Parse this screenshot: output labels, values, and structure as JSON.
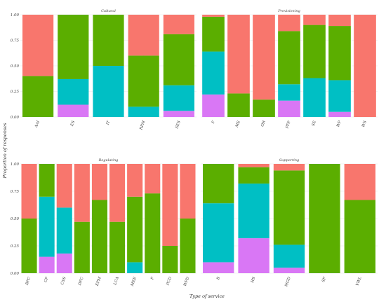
{
  "colors": {
    "red": "#F8766D",
    "green": "#5BAE00",
    "cyan": "#00BFC4",
    "purple": "#D977F5",
    "panel_bg": "#FFFFFF",
    "grid": "#E8E8E8"
  },
  "stack_order_bottom_to_top": [
    "purple",
    "cyan",
    "green",
    "red"
  ],
  "chart_data": {
    "type": "bar",
    "stacked": true,
    "xlabel": "Type of service",
    "ylabel": "Proportion of responses",
    "ylim": [
      0,
      1
    ],
    "yticks": [
      "0.00",
      "0.25",
      "0.50",
      "0.75",
      "1.00"
    ],
    "grid": true,
    "legend": "none",
    "panels": [
      {
        "title": "Cultural",
        "categories": [
          "AAI",
          "ES",
          "IT",
          "RPM",
          "SES"
        ],
        "series": [
          {
            "color": "purple",
            "values": [
              0.0,
              0.12,
              0.0,
              0.0,
              0.06
            ]
          },
          {
            "color": "cyan",
            "values": [
              0.0,
              0.25,
              0.5,
              0.1,
              0.25
            ]
          },
          {
            "color": "green",
            "values": [
              0.4,
              0.63,
              0.5,
              0.5,
              0.5
            ]
          },
          {
            "color": "red",
            "values": [
              0.6,
              0.0,
              0.0,
              0.4,
              0.19
            ]
          }
        ]
      },
      {
        "title": "Provisioning",
        "categories": [
          "F",
          "ME",
          "OR",
          "PFF",
          "SE",
          "WP",
          "WS"
        ],
        "series": [
          {
            "color": "purple",
            "values": [
              0.22,
              0.0,
              0.0,
              0.16,
              0.0,
              0.05,
              0.0
            ]
          },
          {
            "color": "cyan",
            "values": [
              0.42,
              0.0,
              0.0,
              0.16,
              0.38,
              0.31,
              0.0
            ]
          },
          {
            "color": "green",
            "values": [
              0.34,
              0.23,
              0.17,
              0.52,
              0.52,
              0.53,
              0.0
            ]
          },
          {
            "color": "red",
            "values": [
              0.02,
              0.77,
              0.83,
              0.16,
              0.1,
              0.11,
              1.0
            ]
          }
        ]
      },
      {
        "title": "Regulating",
        "categories": [
          "BPC",
          "CP",
          "CSS",
          "DFC",
          "EPM",
          "LCA",
          "MEE",
          "P",
          "PCD",
          "WPD"
        ],
        "series": [
          {
            "color": "purple",
            "values": [
              0.0,
              0.15,
              0.18,
              0.0,
              0.0,
              0.0,
              0.0,
              0.0,
              0.0,
              0.0
            ]
          },
          {
            "color": "cyan",
            "values": [
              0.0,
              0.55,
              0.42,
              0.0,
              0.0,
              0.0,
              0.1,
              0.0,
              0.0,
              0.0
            ]
          },
          {
            "color": "green",
            "values": [
              0.5,
              0.3,
              0.0,
              0.47,
              0.67,
              0.47,
              0.6,
              0.73,
              0.25,
              0.5
            ]
          },
          {
            "color": "red",
            "values": [
              0.5,
              0.0,
              0.4,
              0.53,
              0.33,
              0.53,
              0.3,
              0.27,
              0.75,
              0.5
            ]
          }
        ]
      },
      {
        "title": "Supporting",
        "categories": [
          "B",
          "HS",
          "MGD",
          "SF",
          "VWL"
        ],
        "series": [
          {
            "color": "purple",
            "values": [
              0.1,
              0.32,
              0.05,
              0.0,
              0.0
            ]
          },
          {
            "color": "cyan",
            "values": [
              0.54,
              0.5,
              0.21,
              0.0,
              0.0
            ]
          },
          {
            "color": "green",
            "values": [
              0.36,
              0.15,
              0.68,
              1.0,
              0.67
            ]
          },
          {
            "color": "red",
            "values": [
              0.0,
              0.03,
              0.06,
              0.0,
              0.33
            ]
          }
        ]
      }
    ]
  }
}
